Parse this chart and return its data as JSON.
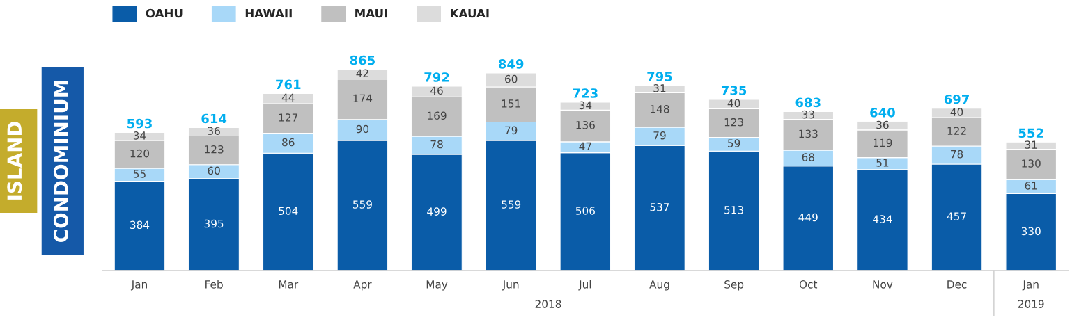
{
  "chart_data": {
    "type": "bar",
    "stacked": true,
    "data_labels": true,
    "legend": "top left",
    "grid": false,
    "title": "ISLAND",
    "subtitle": "CONDOMINIUM",
    "categories": [
      "Jan",
      "Feb",
      "Mar",
      "Apr",
      "May",
      "Jun",
      "Jul",
      "Aug",
      "Sep",
      "Oct",
      "Nov",
      "Dec",
      "Jan"
    ],
    "series": [
      {
        "name": "OAHU",
        "color": "#0a5ca8",
        "values": [
          384,
          395,
          504,
          559,
          499,
          559,
          506,
          537,
          513,
          449,
          434,
          457,
          330
        ]
      },
      {
        "name": "HAWAII",
        "color": "#a8d8f8",
        "values": [
          55,
          60,
          86,
          90,
          78,
          79,
          47,
          79,
          59,
          68,
          51,
          78,
          61
        ]
      },
      {
        "name": "MAUI",
        "color": "#c0c0c0",
        "values": [
          120,
          123,
          127,
          174,
          169,
          151,
          136,
          148,
          123,
          133,
          119,
          122,
          130
        ]
      },
      {
        "name": "KAUAI",
        "color": "#dcdcdc",
        "values": [
          34,
          36,
          44,
          42,
          46,
          60,
          34,
          31,
          40,
          33,
          36,
          40,
          31
        ]
      }
    ],
    "totals": [
      "593",
      "614",
      "761",
      "865",
      "792",
      "849",
      "723",
      "795",
      "735",
      "683",
      "640",
      "697",
      "552"
    ],
    "annotations": [
      "2018",
      "2019"
    ]
  }
}
